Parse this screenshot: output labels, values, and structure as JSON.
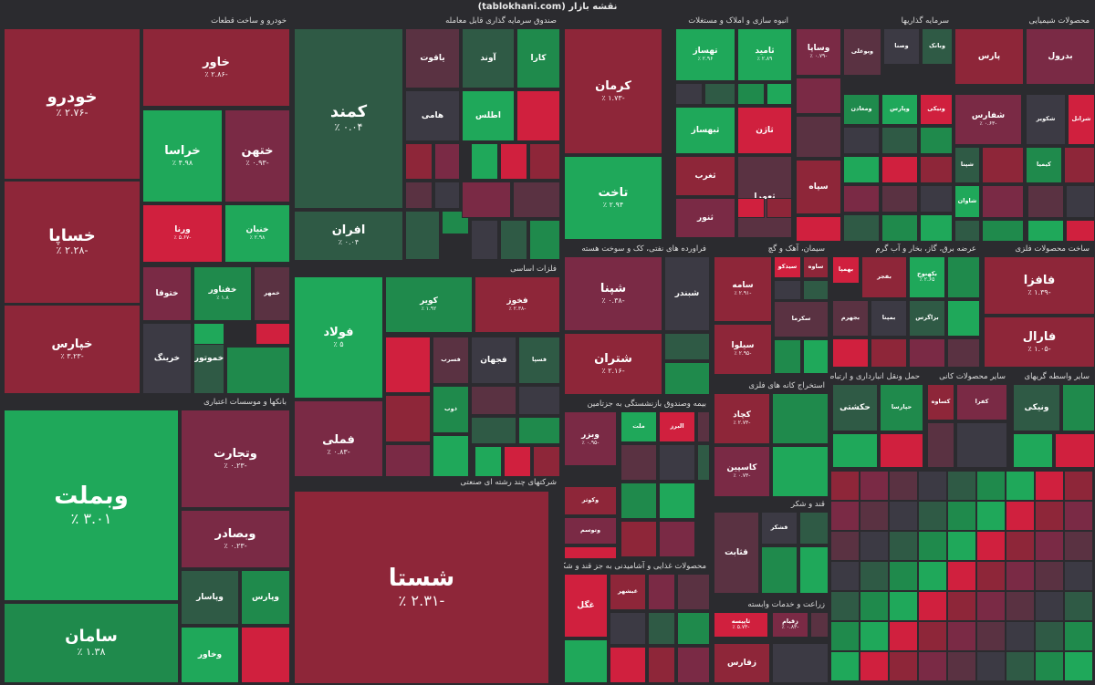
{
  "header": {
    "title": "نقشه بازار (tablokhani.com)"
  },
  "colors": {
    "strong_neg": "#8e2639",
    "neg": "#7a2a45",
    "mild_neg": "#5a3242",
    "neutral": "#3c3a44",
    "mild_pos": "#2f5a45",
    "pos": "#1f8a4c",
    "strong_pos": "#1fa85a",
    "hot_neg": "#d0203e"
  },
  "chart_data": {
    "type": "heatmap",
    "title": "نقشه بازار (tablokhani.com)",
    "sectors": [
      {
        "name": "خودرو و ساخت قطعات",
        "tiles": [
          {
            "symbol": "خودرو",
            "change": "-۲.۷۶ ٪"
          },
          {
            "symbol": "خساپا",
            "change": "-۲.۲۸ ٪"
          },
          {
            "symbol": "خپارس",
            "change": "-۳.۲۳ ٪"
          },
          {
            "symbol": "خاور",
            "change": "-۲.۸۶ ٪"
          },
          {
            "symbol": "خراسا",
            "change": "۴.۹۸ ٪"
          },
          {
            "symbol": "ختهن",
            "change": "-۰.۹۳ ٪"
          },
          {
            "symbol": "ورنا",
            "change": "-۵.۶۷ ٪"
          },
          {
            "symbol": "خنیان",
            "change": "۲.۹۸ ٪"
          },
          {
            "symbol": "خفناور",
            "change": "۱.۸ ٪"
          },
          {
            "symbol": "ختوقا",
            "change": ""
          },
          {
            "symbol": "خمهر",
            "change": ""
          },
          {
            "symbol": "خرینگ",
            "change": ""
          },
          {
            "symbol": "خموتور",
            "change": ""
          }
        ]
      },
      {
        "name": "بانکها و موسسات اعتباری",
        "tiles": [
          {
            "symbol": "وبملت",
            "change": "۳.۰۱ ٪"
          },
          {
            "symbol": "سامان",
            "change": "۱.۳۸ ٪"
          },
          {
            "symbol": "وتجارت",
            "change": "-۰.۲۳ ٪"
          },
          {
            "symbol": "وبصادر",
            "change": "-۰.۲۳ ٪"
          },
          {
            "symbol": "وپاسار",
            "change": ""
          },
          {
            "symbol": "وپارس",
            "change": ""
          },
          {
            "symbol": "وخاور",
            "change": ""
          }
        ]
      },
      {
        "name": "صندوق سرمایه گذاری قابل معامله",
        "tiles": [
          {
            "symbol": "کمند",
            "change": "۰.۰۴ ٪"
          },
          {
            "symbol": "افران",
            "change": "۰.۰۴ ٪"
          },
          {
            "symbol": "یاقوت",
            "change": ""
          },
          {
            "symbol": "هامی",
            "change": ""
          },
          {
            "symbol": "آوند",
            "change": ""
          },
          {
            "symbol": "کارا",
            "change": ""
          },
          {
            "symbol": "اطلس",
            "change": ""
          }
        ]
      },
      {
        "name": "فلزات اساسی",
        "tiles": [
          {
            "symbol": "فولاد",
            "change": "۵ ٪"
          },
          {
            "symbol": "فملی",
            "change": "-۰.۸۳ ٪"
          },
          {
            "symbol": "کویر",
            "change": "۱.۹۲ ٪"
          },
          {
            "symbol": "فخوز",
            "change": "-۲.۳۸ ٪"
          },
          {
            "symbol": "فسرب",
            "change": ""
          },
          {
            "symbol": "فجهان",
            "change": ""
          },
          {
            "symbol": "فسپا",
            "change": ""
          },
          {
            "symbol": "ذوب",
            "change": ""
          }
        ]
      },
      {
        "name": "شرکتهای چند رشته ای صنعتی",
        "tiles": [
          {
            "symbol": "شستا",
            "change": "-۲.۳۱ ٪"
          }
        ]
      },
      {
        "name": "انبوه سازی و املاک و مستغلات",
        "tiles": [
          {
            "symbol": "کرمان",
            "change": "-۱.۷۳ ٪"
          },
          {
            "symbol": "تاخت",
            "change": "۲.۹۴ ٪"
          },
          {
            "symbol": "تهساز",
            "change": "۲.۹۶ ٪"
          },
          {
            "symbol": "ثامید",
            "change": "۲.۸۹ ٪"
          },
          {
            "symbol": "ثبهساز",
            "change": ""
          },
          {
            "symbol": "ثاژن",
            "change": ""
          },
          {
            "symbol": "ثغرب",
            "change": ""
          },
          {
            "symbol": "ثنور",
            "change": ""
          },
          {
            "symbol": "ثعمرا",
            "change": ""
          }
        ]
      },
      {
        "name": "سرمایه گذاریها",
        "tiles": [
          {
            "symbol": "وساپا",
            "change": "-۰.۷۹ ٪"
          },
          {
            "symbol": "وبوعلی",
            "change": ""
          },
          {
            "symbol": "وصنا",
            "change": ""
          },
          {
            "symbol": "وبانک",
            "change": ""
          },
          {
            "symbol": "ومعادن",
            "change": ""
          },
          {
            "symbol": "وپارس",
            "change": ""
          },
          {
            "symbol": "ونیکی",
            "change": ""
          },
          {
            "symbol": "سپاه",
            "change": ""
          }
        ]
      },
      {
        "name": "محصولات شیمیایی",
        "tiles": [
          {
            "symbol": "پارس",
            "change": ""
          },
          {
            "symbol": "بدرول",
            "change": ""
          },
          {
            "symbol": "شفارس",
            "change": "-۰.۶۳ ٪"
          },
          {
            "symbol": "شکویر",
            "change": ""
          },
          {
            "symbol": "شپنا",
            "change": ""
          },
          {
            "symbol": "کیمیا",
            "change": ""
          },
          {
            "symbol": "شاوان",
            "change": ""
          },
          {
            "symbol": "شرانل",
            "change": ""
          }
        ]
      },
      {
        "name": "فراورده های نفتی، کک و سوخت هسته",
        "tiles": [
          {
            "symbol": "شپنا",
            "change": "-۰.۳۸ ٪"
          },
          {
            "symbol": "شتران",
            "change": "-۲.۱۶ ٪"
          },
          {
            "symbol": "شبندر",
            "change": ""
          }
        ]
      },
      {
        "name": "سیمان، آهک و گچ",
        "tiles": [
          {
            "symbol": "سامه",
            "change": "-۲.۹۱ ٪"
          },
          {
            "symbol": "سیدکو",
            "change": ""
          },
          {
            "symbol": "ساوه",
            "change": ""
          },
          {
            "symbol": "سیلوا",
            "change": "-۲.۹۵ ٪"
          },
          {
            "symbol": "سکرما",
            "change": ""
          }
        ]
      },
      {
        "name": "عرضه برق، گاز، بخار و آب گرم",
        "tiles": [
          {
            "symbol": "بهمپا",
            "change": ""
          },
          {
            "symbol": "بفجر",
            "change": ""
          },
          {
            "symbol": "بکهنوج",
            "change": "۲.۶۵ ٪"
          },
          {
            "symbol": "بجهرم",
            "change": ""
          },
          {
            "symbol": "بمپنا",
            "change": ""
          },
          {
            "symbol": "بزاگرس",
            "change": ""
          }
        ]
      },
      {
        "name": "ساخت محصولات فلزی",
        "tiles": [
          {
            "symbol": "فافزا",
            "change": "-۱.۳۹ ٪"
          },
          {
            "symbol": "فارال",
            "change": "-۱.۰۵ ٪"
          }
        ]
      },
      {
        "name": "بیمه وصندوق بازنشستگی به جزتامین",
        "tiles": [
          {
            "symbol": "وبزر",
            "change": "-۰.۹۵ ٪"
          },
          {
            "symbol": "ملت",
            "change": ""
          },
          {
            "symbol": "البرز",
            "change": ""
          },
          {
            "symbol": "وکوثر",
            "change": ""
          },
          {
            "symbol": "وتوسم",
            "change": ""
          }
        ]
      },
      {
        "name": "استخراج کانه های فلزی",
        "tiles": [
          {
            "symbol": "کچاد",
            "change": "-۲.۷۳ ٪"
          },
          {
            "symbol": "کاسپین",
            "change": "-۰.۷۳ ٪"
          }
        ]
      },
      {
        "name": "محصولات غذایی و آشامیدنی به جز قند و شکر",
        "tiles": [
          {
            "symbol": "غگل",
            "change": ""
          },
          {
            "symbol": "غبشهر",
            "change": ""
          }
        ]
      },
      {
        "name": "قند و شکر",
        "tiles": [
          {
            "symbol": "قثابت",
            "change": ""
          },
          {
            "symbol": "قشکر",
            "change": ""
          }
        ]
      },
      {
        "name": "زراعت و خدمات وابسته",
        "tiles": [
          {
            "symbol": "ثاپیسه",
            "change": "-۵.۷۳ ٪"
          },
          {
            "symbol": "زفارس",
            "change": ""
          },
          {
            "symbol": "زقیام",
            "change": "-۰.۸۳ ٪"
          }
        ]
      },
      {
        "name": "حمل ونقل انبارداری و ارتباطات",
        "tiles": [
          {
            "symbol": "حکشتی",
            "change": ""
          },
          {
            "symbol": "حپارسا",
            "change": ""
          }
        ]
      },
      {
        "name": "سایر محصولات کانی",
        "tiles": [
          {
            "symbol": "کساوه",
            "change": ""
          },
          {
            "symbol": "کفرا",
            "change": ""
          }
        ]
      },
      {
        "name": "سایر واسطه گریهای",
        "tiles": [
          {
            "symbol": "ونیکی",
            "change": ""
          }
        ]
      }
    ]
  }
}
